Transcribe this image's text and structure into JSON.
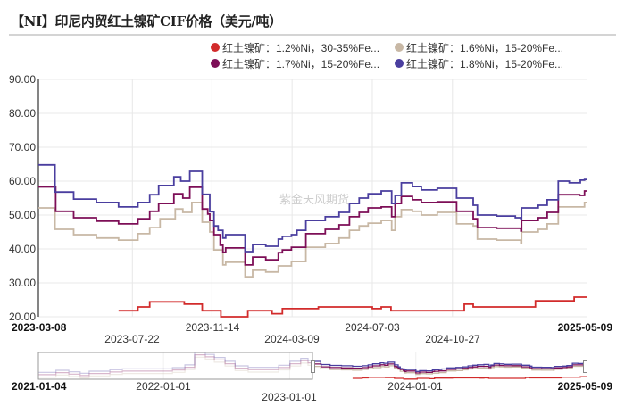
{
  "title": "【NI】印尼内贸红土镍矿CIF价格（美元/吨）",
  "watermark": "紫金天风期货",
  "chart_data": {
    "type": "line",
    "title": "【NI】印尼内贸红土镍矿CIF价格（美元/吨）",
    "xlabel": "",
    "ylabel": "美元/吨",
    "ylim": [
      20,
      90
    ],
    "xlim": [
      "2023-03-08",
      "2025-05-09"
    ],
    "grid": true,
    "legend_position": "top-right",
    "yticks": [
      "90.00",
      "80.00",
      "70.00",
      "60.00",
      "50.00",
      "40.00",
      "30.00",
      "20.00"
    ],
    "xticks": [
      "2023-03-08",
      "2023-07-22",
      "2023-11-14",
      "2024-03-09",
      "2024-07-03",
      "2024-10-27",
      "2025-05-09"
    ],
    "series": [
      {
        "id": "ni12",
        "name": "红土镍矿：1.2%Ni，30-35%Fe...",
        "color": "#d22b2b",
        "points": [
          [
            "2023-07-02",
            21.8
          ],
          [
            "2023-07-30",
            22.9
          ],
          [
            "2023-08-16",
            24.4
          ],
          [
            "2023-10-05",
            23.7
          ],
          [
            "2023-10-31",
            21.8
          ],
          [
            "2023-11-27",
            20.0
          ],
          [
            "2024-01-05",
            21.8
          ],
          [
            "2024-02-09",
            20.9
          ],
          [
            "2024-02-24",
            22.4
          ],
          [
            "2024-04-16",
            22.9
          ],
          [
            "2024-07-03",
            22.4
          ],
          [
            "2024-07-16",
            22.9
          ],
          [
            "2024-07-30",
            21.8
          ],
          [
            "2024-11-13",
            23.7
          ],
          [
            "2024-11-26",
            22.9
          ],
          [
            "2025-02-24",
            24.7
          ],
          [
            "2025-04-21",
            25.8
          ],
          [
            "2025-05-09",
            25.8
          ]
        ]
      },
      {
        "id": "ni16",
        "name": "红土镍矿：1.6%Ni，15-20%Fe...",
        "color": "#c8b8a5",
        "points": [
          [
            "2023-03-08",
            52.1
          ],
          [
            "2023-04-01",
            45.8
          ],
          [
            "2023-04-28",
            44.2
          ],
          [
            "2023-05-31",
            43.2
          ],
          [
            "2023-07-02",
            42.6
          ],
          [
            "2023-07-30",
            44.5
          ],
          [
            "2023-08-16",
            46.3
          ],
          [
            "2023-08-31",
            48.9
          ],
          [
            "2023-09-22",
            51.8
          ],
          [
            "2023-10-03",
            50.8
          ],
          [
            "2023-10-16",
            53.7
          ],
          [
            "2023-10-31",
            47.9
          ],
          [
            "2023-11-11",
            45.0
          ],
          [
            "2023-11-17",
            39.7
          ],
          [
            "2023-11-30",
            35.3
          ],
          [
            "2023-12-04",
            36.1
          ],
          [
            "2024-01-01",
            31.8
          ],
          [
            "2024-01-12",
            33.7
          ],
          [
            "2024-01-31",
            33.2
          ],
          [
            "2024-02-18",
            35.0
          ],
          [
            "2024-03-08",
            36.3
          ],
          [
            "2024-03-29",
            40.5
          ],
          [
            "2024-04-26",
            41.6
          ],
          [
            "2024-05-16",
            43.2
          ],
          [
            "2024-05-31",
            45.5
          ],
          [
            "2024-06-14",
            46.8
          ],
          [
            "2024-06-27",
            47.6
          ],
          [
            "2024-07-16",
            48.4
          ],
          [
            "2024-07-31",
            45.5
          ],
          [
            "2024-08-05",
            49.5
          ],
          [
            "2024-08-14",
            51.6
          ],
          [
            "2024-08-30",
            51.1
          ],
          [
            "2024-09-12",
            50.0
          ],
          [
            "2024-10-05",
            50.8
          ],
          [
            "2024-11-02",
            47.4
          ],
          [
            "2024-11-26",
            46.8
          ],
          [
            "2024-12-02",
            42.9
          ],
          [
            "2024-12-30",
            42.6
          ],
          [
            "2025-02-03",
            41.8
          ],
          [
            "2025-02-04",
            45.0
          ],
          [
            "2025-02-28",
            45.8
          ],
          [
            "2025-03-13",
            47.4
          ],
          [
            "2025-03-29",
            52.4
          ],
          [
            "2025-04-30",
            52.4
          ],
          [
            "2025-05-06",
            53.7
          ],
          [
            "2025-05-09",
            53.7
          ]
        ]
      },
      {
        "id": "ni17",
        "name": "红土镍矿：1.7%Ni，15-20%Fe...",
        "color": "#7d0e57",
        "points": [
          [
            "2023-03-08",
            58.3
          ],
          [
            "2023-04-02",
            51.1
          ],
          [
            "2023-04-28",
            49.2
          ],
          [
            "2023-05-31",
            48.2
          ],
          [
            "2023-07-02",
            47.4
          ],
          [
            "2023-07-30",
            48.9
          ],
          [
            "2023-08-16",
            51.1
          ],
          [
            "2023-08-29",
            53.4
          ],
          [
            "2023-09-20",
            56.3
          ],
          [
            "2023-10-03",
            55.0
          ],
          [
            "2023-10-13",
            58.2
          ],
          [
            "2023-10-31",
            51.8
          ],
          [
            "2023-11-08",
            50.3
          ],
          [
            "2023-11-11",
            48.4
          ],
          [
            "2023-11-17",
            44.2
          ],
          [
            "2023-11-26",
            41.1
          ],
          [
            "2023-11-30",
            39.0
          ],
          [
            "2023-12-04",
            40.3
          ],
          [
            "2024-01-01",
            35.3
          ],
          [
            "2024-01-12",
            37.6
          ],
          [
            "2024-01-31",
            36.8
          ],
          [
            "2024-02-18",
            38.9
          ],
          [
            "2024-02-24",
            39.7
          ],
          [
            "2024-03-08",
            40.5
          ],
          [
            "2024-03-29",
            44.5
          ],
          [
            "2024-04-26",
            45.8
          ],
          [
            "2024-05-16",
            47.1
          ],
          [
            "2024-05-31",
            49.5
          ],
          [
            "2024-06-14",
            50.8
          ],
          [
            "2024-06-27",
            52.1
          ],
          [
            "2024-07-16",
            52.4
          ],
          [
            "2024-07-31",
            49.5
          ],
          [
            "2024-08-05",
            53.4
          ],
          [
            "2024-08-14",
            55.5
          ],
          [
            "2024-08-30",
            54.5
          ],
          [
            "2024-09-12",
            53.7
          ],
          [
            "2024-10-05",
            53.9
          ],
          [
            "2024-11-02",
            51.1
          ],
          [
            "2024-11-26",
            48.9
          ],
          [
            "2024-12-02",
            46.3
          ],
          [
            "2024-12-30",
            46.1
          ],
          [
            "2025-02-03",
            45.3
          ],
          [
            "2025-02-04",
            48.4
          ],
          [
            "2025-02-28",
            49.2
          ],
          [
            "2025-03-13",
            50.8
          ],
          [
            "2025-03-29",
            56.0
          ],
          [
            "2025-04-29",
            55.8
          ],
          [
            "2025-05-06",
            57.1
          ],
          [
            "2025-05-09",
            57.1
          ]
        ]
      },
      {
        "id": "ni18",
        "name": "红土镍矿：1.8%Ni，15-20%Fe...",
        "color": "#4a3e9f",
        "points": [
          [
            "2023-03-08",
            64.8
          ],
          [
            "2023-04-01",
            56.8
          ],
          [
            "2023-04-28",
            54.7
          ],
          [
            "2023-05-31",
            53.7
          ],
          [
            "2023-07-02",
            52.4
          ],
          [
            "2023-07-30",
            53.7
          ],
          [
            "2023-08-16",
            56.0
          ],
          [
            "2023-08-29",
            58.7
          ],
          [
            "2023-09-20",
            61.3
          ],
          [
            "2023-09-30",
            60.0
          ],
          [
            "2023-10-13",
            62.9
          ],
          [
            "2023-10-31",
            56.1
          ],
          [
            "2023-11-11",
            51.0
          ],
          [
            "2023-11-17",
            46.8
          ],
          [
            "2023-11-23",
            45.5
          ],
          [
            "2023-11-30",
            43.2
          ],
          [
            "2023-12-04",
            44.2
          ],
          [
            "2024-01-01",
            39.2
          ],
          [
            "2024-01-12",
            41.3
          ],
          [
            "2024-01-31",
            40.8
          ],
          [
            "2024-02-18",
            42.9
          ],
          [
            "2024-02-24",
            43.7
          ],
          [
            "2024-03-08",
            44.2
          ],
          [
            "2024-03-16",
            45.5
          ],
          [
            "2024-03-29",
            48.4
          ],
          [
            "2024-04-26",
            49.5
          ],
          [
            "2024-05-16",
            50.8
          ],
          [
            "2024-05-31",
            53.4
          ],
          [
            "2024-06-14",
            55.0
          ],
          [
            "2024-06-27",
            56.3
          ],
          [
            "2024-07-16",
            57.1
          ],
          [
            "2024-07-31",
            53.4
          ],
          [
            "2024-08-05",
            55.8
          ],
          [
            "2024-08-14",
            59.5
          ],
          [
            "2024-08-30",
            58.4
          ],
          [
            "2024-09-12",
            57.4
          ],
          [
            "2024-10-05",
            57.9
          ],
          [
            "2024-11-02",
            55.0
          ],
          [
            "2024-11-26",
            52.9
          ],
          [
            "2024-12-02",
            50.0
          ],
          [
            "2024-12-30",
            49.7
          ],
          [
            "2025-01-26",
            49.2
          ],
          [
            "2025-02-03",
            48.7
          ],
          [
            "2025-02-04",
            52.1
          ],
          [
            "2025-02-28",
            52.9
          ],
          [
            "2025-03-13",
            54.5
          ],
          [
            "2025-03-29",
            60.0
          ],
          [
            "2025-04-14",
            59.5
          ],
          [
            "2025-04-30",
            60.3
          ],
          [
            "2025-05-06",
            60.5
          ],
          [
            "2025-05-09",
            60.5
          ]
        ]
      }
    ],
    "navigator": {
      "range": [
        "2021-01-04",
        "2025-05-09"
      ],
      "selected": [
        "2023-03-08",
        "2025-05-09"
      ],
      "ticks": [
        "2021-01-04",
        "2022-01-01",
        "2023-01-01",
        "2024-01-01",
        "2025-05-09"
      ],
      "history": [
        {
          "id": "ni16",
          "points": [
            [
              "2021-01-04",
              25.0
            ],
            [
              "2021-02-24",
              30.2
            ],
            [
              "2021-04-02",
              26.4
            ],
            [
              "2021-05-05",
              22.7
            ],
            [
              "2021-05-31",
              28.0
            ],
            [
              "2021-07-30",
              31.8
            ],
            [
              "2021-09-04",
              34.1
            ],
            [
              "2022-01-27",
              37.0
            ],
            [
              "2022-03-04",
              43.9
            ],
            [
              "2022-04-01",
              75.5
            ],
            [
              "2022-05-02",
              70.5
            ],
            [
              "2022-05-28",
              62.7
            ],
            [
              "2022-06-28",
              53.0
            ],
            [
              "2022-07-27",
              41.6
            ],
            [
              "2022-09-03",
              37.7
            ],
            [
              "2022-11-30",
              43.2
            ],
            [
              "2023-01-02",
              53.0
            ],
            [
              "2023-02-02",
              60.5
            ],
            [
              "2023-02-23",
              55.2
            ],
            [
              "2023-03-08",
              52.1
            ]
          ]
        },
        {
          "id": "ni17",
          "points": [
            [
              "2021-01-04",
              31.0
            ],
            [
              "2021-02-24",
              36.2
            ],
            [
              "2021-04-02",
              32.4
            ],
            [
              "2021-05-05",
              28.7
            ],
            [
              "2021-05-31",
              34.0
            ],
            [
              "2021-07-30",
              37.8
            ],
            [
              "2021-09-04",
              40.1
            ],
            [
              "2022-01-27",
              43.0
            ],
            [
              "2022-03-04",
              49.9
            ],
            [
              "2022-04-01",
              81.5
            ],
            [
              "2022-05-02",
              76.5
            ],
            [
              "2022-05-28",
              68.7
            ],
            [
              "2022-06-28",
              59.0
            ],
            [
              "2022-07-27",
              47.6
            ],
            [
              "2022-09-03",
              43.7
            ],
            [
              "2022-11-30",
              49.2
            ],
            [
              "2023-01-02",
              59.0
            ],
            [
              "2023-02-02",
              66.5
            ],
            [
              "2023-02-23",
              61.2
            ],
            [
              "2023-03-08",
              58.3
            ]
          ]
        },
        {
          "id": "ni18",
          "points": [
            [
              "2021-01-04",
              37.0
            ],
            [
              "2021-02-24",
              42.2
            ],
            [
              "2021-04-02",
              38.4
            ],
            [
              "2021-05-05",
              34.7
            ],
            [
              "2021-05-31",
              40.0
            ],
            [
              "2021-07-30",
              43.8
            ],
            [
              "2021-09-04",
              46.1
            ],
            [
              "2022-01-27",
              49.0
            ],
            [
              "2022-03-04",
              55.9
            ],
            [
              "2022-04-01",
              87.5
            ],
            [
              "2022-05-02",
              82.5
            ],
            [
              "2022-05-28",
              74.7
            ],
            [
              "2022-06-28",
              65.0
            ],
            [
              "2022-07-27",
              53.6
            ],
            [
              "2022-09-03",
              49.7
            ],
            [
              "2022-11-30",
              55.2
            ],
            [
              "2023-01-02",
              65.0
            ],
            [
              "2023-02-02",
              72.5
            ],
            [
              "2023-02-23",
              67.2
            ],
            [
              "2023-03-08",
              64.8
            ]
          ]
        }
      ]
    }
  }
}
